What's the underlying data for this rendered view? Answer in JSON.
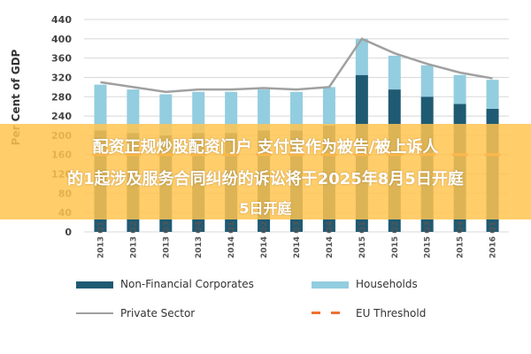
{
  "chart_data": {
    "type": "bar",
    "ylabel": "Per Cent of GDP",
    "ylim": [
      0,
      440
    ],
    "yticks": [
      0,
      40,
      80,
      120,
      160,
      200,
      240,
      280,
      320,
      360,
      400,
      440
    ],
    "categories": [
      "2013 Q1",
      "2013 Q2",
      "2013 Q3",
      "2013 Q4",
      "2014 Q1",
      "2014 Q2",
      "2014 Q3",
      "2014 Q4",
      "2015 Q1",
      "2015 Q2",
      "2015 Q3",
      "2015 Q4",
      "2016 Q1"
    ],
    "series": [
      {
        "name": "Non-Financial Corporates",
        "values": [
          210,
          205,
          200,
          205,
          205,
          210,
          210,
          220,
          325,
          295,
          280,
          265,
          255
        ]
      },
      {
        "name": "Households",
        "values": [
          95,
          90,
          85,
          85,
          85,
          85,
          80,
          80,
          75,
          70,
          65,
          60,
          60
        ]
      },
      {
        "name": "Private Sector",
        "values": [
          310,
          300,
          290,
          295,
          295,
          298,
          295,
          300,
          400,
          370,
          348,
          330,
          318
        ]
      },
      {
        "name": "EU Threshold",
        "values": [
          160,
          160,
          160,
          160,
          160,
          160,
          160,
          160,
          160,
          160,
          160,
          160,
          160
        ]
      }
    ],
    "colors": {
      "corporates": "#1f5a73",
      "households": "#93cde0",
      "private": "#a0a0a0",
      "threshold": "#f07030"
    }
  },
  "legend": {
    "corporates": "Non-Financial Corporates",
    "households": "Households",
    "private": "Private Sector",
    "threshold": "EU Threshold"
  },
  "banner": {
    "line1": "配资正规炒股配资门户 支付宝作为被告/被上诉人",
    "line2": "的1起涉及服务合同纠纷的诉讼将于2025年8月5日开庭",
    "line3": "5日开庭"
  }
}
